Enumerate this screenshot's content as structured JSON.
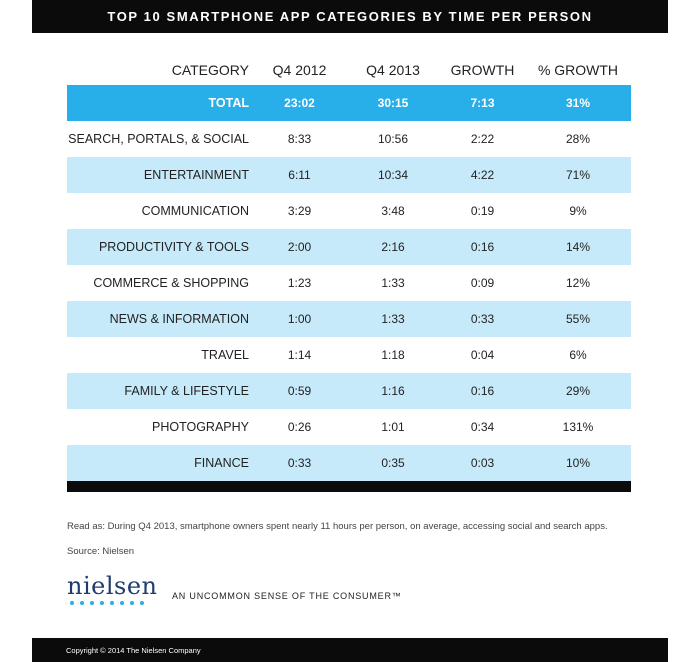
{
  "title": "TOP 10 SMARTPHONE APP CATEGORIES BY TIME PER PERSON",
  "columns": [
    "CATEGORY",
    "Q4 2012",
    "Q4 2013",
    "GROWTH",
    "% GROWTH"
  ],
  "rows": [
    {
      "cells": [
        "TOTAL",
        "23:02",
        "30:15",
        "7:13",
        "31%"
      ],
      "style": "total"
    },
    {
      "cells": [
        "SEARCH, PORTALS, & SOCIAL",
        "8:33",
        "10:56",
        "2:22",
        "28%"
      ],
      "style": "plain"
    },
    {
      "cells": [
        "ENTERTAINMENT",
        "6:11",
        "10:34",
        "4:22",
        "71%"
      ],
      "style": "shaded"
    },
    {
      "cells": [
        "COMMUNICATION",
        "3:29",
        "3:48",
        "0:19",
        "9%"
      ],
      "style": "plain"
    },
    {
      "cells": [
        "PRODUCTIVITY & TOOLS",
        "2:00",
        "2:16",
        "0:16",
        "14%"
      ],
      "style": "shaded"
    },
    {
      "cells": [
        "COMMERCE & SHOPPING",
        "1:23",
        "1:33",
        "0:09",
        "12%"
      ],
      "style": "plain"
    },
    {
      "cells": [
        "NEWS & INFORMATION",
        "1:00",
        "1:33",
        "0:33",
        "55%"
      ],
      "style": "shaded"
    },
    {
      "cells": [
        "TRAVEL",
        "1:14",
        "1:18",
        "0:04",
        "6%"
      ],
      "style": "plain"
    },
    {
      "cells": [
        "FAMILY & LIFESTYLE",
        "0:59",
        "1:16",
        "0:16",
        "29%"
      ],
      "style": "shaded"
    },
    {
      "cells": [
        "PHOTOGRAPHY",
        "0:26",
        "1:01",
        "0:34",
        "131%"
      ],
      "style": "plain"
    },
    {
      "cells": [
        "FINANCE",
        "0:33",
        "0:35",
        "0:03",
        "10%"
      ],
      "style": "shaded"
    }
  ],
  "notes": {
    "read_as": "Read as: During Q4 2013, smartphone owners spent nearly 11 hours per person, on average, accessing social and search apps.",
    "source": "Source: Nielsen"
  },
  "brand": {
    "logo": "nielsen",
    "tagline": "AN UNCOMMON SENSE OF THE CONSUMER™",
    "copyright": "Copyright © 2014 The Nielsen Company"
  },
  "colors": {
    "total_row": "#28aee8",
    "shaded_row": "#c6eafa",
    "bars": "#0b0b0b",
    "logo_text": "#1f3c6c"
  },
  "chart_data": {
    "type": "table",
    "title": "TOP 10 SMARTPHONE APP CATEGORIES BY TIME PER PERSON",
    "columns": [
      "CATEGORY",
      "Q4 2012",
      "Q4 2013",
      "GROWTH",
      "% GROWTH"
    ],
    "rows": [
      [
        "TOTAL",
        "23:02",
        "30:15",
        "7:13",
        "31%"
      ],
      [
        "SEARCH, PORTALS, & SOCIAL",
        "8:33",
        "10:56",
        "2:22",
        "28%"
      ],
      [
        "ENTERTAINMENT",
        "6:11",
        "10:34",
        "4:22",
        "71%"
      ],
      [
        "COMMUNICATION",
        "3:29",
        "3:48",
        "0:19",
        "9%"
      ],
      [
        "PRODUCTIVITY & TOOLS",
        "2:00",
        "2:16",
        "0:16",
        "14%"
      ],
      [
        "COMMERCE & SHOPPING",
        "1:23",
        "1:33",
        "0:09",
        "12%"
      ],
      [
        "NEWS & INFORMATION",
        "1:00",
        "1:33",
        "0:33",
        "55%"
      ],
      [
        "TRAVEL",
        "1:14",
        "1:18",
        "0:04",
        "6%"
      ],
      [
        "FAMILY & LIFESTYLE",
        "0:59",
        "1:16",
        "0:16",
        "29%"
      ],
      [
        "PHOTOGRAPHY",
        "0:26",
        "1:01",
        "0:34",
        "131%"
      ],
      [
        "FINANCE",
        "0:33",
        "0:35",
        "0:03",
        "10%"
      ]
    ]
  }
}
